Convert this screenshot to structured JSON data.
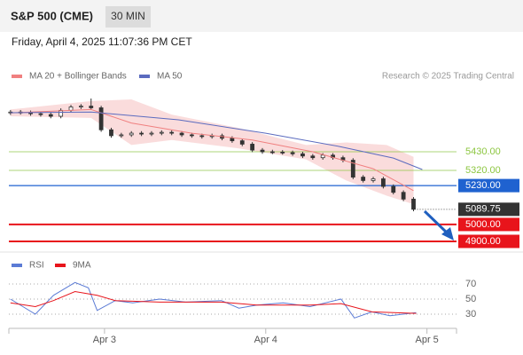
{
  "header": {
    "title": "S&P 500 (CME)",
    "interval": "30 MIN",
    "timestamp": "Friday, April 4, 2025 11:07:36 PM CET",
    "credit": "Research © 2025 Trading Central"
  },
  "chart_data": [
    {
      "type": "candlestick",
      "x": [
        -14,
        -12.5,
        -11,
        -9.5,
        -8,
        -6.5,
        -5,
        -3.5,
        -2,
        -0.5,
        1,
        2.5,
        4,
        5.5,
        7,
        8.5,
        10,
        11.5,
        13,
        14.5,
        16,
        17.5,
        19,
        20.5,
        22,
        23.5,
        25,
        26.5,
        28,
        29.5,
        31,
        32.5,
        34,
        35.5,
        37,
        38.5,
        40,
        41.5,
        43,
        44.5,
        46
      ],
      "open": [
        5660,
        5665,
        5662,
        5655,
        5650,
        5640,
        5675,
        5695,
        5700,
        5690,
        5560,
        5525,
        5530,
        5540,
        5535,
        5540,
        5545,
        5540,
        5530,
        5525,
        5520,
        5525,
        5510,
        5495,
        5475,
        5440,
        5430,
        5428,
        5425,
        5418,
        5405,
        5395,
        5410,
        5395,
        5380,
        5280,
        5260,
        5270,
        5225,
        5190,
        5150
      ],
      "high": [
        5677,
        5677,
        5674,
        5667,
        5662,
        5687,
        5707,
        5712,
        5745,
        5702,
        5572,
        5542,
        5552,
        5552,
        5552,
        5557,
        5557,
        5552,
        5542,
        5537,
        5537,
        5537,
        5522,
        5507,
        5487,
        5452,
        5442,
        5440,
        5437,
        5430,
        5417,
        5422,
        5422,
        5407,
        5392,
        5292,
        5282,
        5282,
        5237,
        5202,
        5162
      ],
      "low": [
        5648,
        5650,
        5643,
        5638,
        5628,
        5628,
        5663,
        5683,
        5678,
        5548,
        5513,
        5513,
        5518,
        5523,
        5523,
        5528,
        5528,
        5518,
        5513,
        5508,
        5508,
        5498,
        5483,
        5463,
        5428,
        5418,
        5416,
        5413,
        5406,
        5393,
        5383,
        5383,
        5383,
        5368,
        5268,
        5248,
        5248,
        5213,
        5178,
        5138,
        5078
      ],
      "close": [
        5665,
        5662,
        5655,
        5650,
        5640,
        5675,
        5695,
        5700,
        5690,
        5560,
        5525,
        5530,
        5540,
        5535,
        5540,
        5545,
        5540,
        5530,
        5525,
        5520,
        5525,
        5510,
        5495,
        5475,
        5440,
        5430,
        5428,
        5425,
        5418,
        5405,
        5395,
        5410,
        5395,
        5380,
        5280,
        5260,
        5270,
        5225,
        5190,
        5150,
        5089.75
      ],
      "up_color": "#ffffff",
      "down_color": "#333333",
      "bands": {
        "color": "#f9d3d3",
        "x": [
          -14,
          -2,
          4,
          10,
          20,
          30,
          36,
          42,
          46
        ],
        "upper": [
          5680,
          5730,
          5740,
          5650,
          5570,
          5470,
          5485,
          5470,
          5400
        ],
        "lower": [
          5640,
          5630,
          5470,
          5500,
          5450,
          5385,
          5260,
          5170,
          5120
        ]
      },
      "series": [
        {
          "name": "MA 20 + Bollinger Bands",
          "color": "#f08080",
          "x": [
            -14,
            -2,
            4,
            13,
            22,
            31,
            40,
            46
          ],
          "values": [
            5660,
            5680,
            5600,
            5540,
            5500,
            5430,
            5330,
            5200
          ]
        },
        {
          "name": "MA 50",
          "color": "#5b6bbf",
          "x": [
            -14,
            -2,
            11,
            24,
            35,
            43,
            47.3
          ],
          "values": [
            5661,
            5665,
            5619,
            5540,
            5461,
            5393,
            5325
          ]
        }
      ],
      "levels": [
        {
          "value": 5430,
          "label": "5430.00",
          "color": "#8cc63f",
          "style": "text"
        },
        {
          "value": 5320,
          "label": "5320.00",
          "color": "#8cc63f",
          "style": "text"
        },
        {
          "value": 5230,
          "label": "5230.00",
          "color": "#1f62d0",
          "style": "box"
        },
        {
          "value": 5089.75,
          "color": "#333333",
          "style": "current"
        },
        {
          "value": 5000,
          "label": "5000.00",
          "color": "#e8141b",
          "style": "box"
        },
        {
          "value": 4900,
          "label": "4900.00",
          "color": "#e8141b",
          "style": "box"
        }
      ],
      "xlim": [
        -14.24,
        52.4
      ],
      "ylim": [
        4850,
        5850
      ]
    },
    {
      "type": "line",
      "series": [
        {
          "name": "RSI",
          "color": "#5b7bd5",
          "x": [
            -14,
            -10.3,
            -7.6,
            -4.4,
            -2.4,
            -1.1,
            1.6,
            4.2,
            8.2,
            12.1,
            17.4,
            20,
            22.7,
            26.6,
            30.6,
            35.2,
            37.2,
            39.8,
            42.5,
            46.4
          ],
          "values": [
            50,
            30,
            55,
            72,
            65,
            35,
            48,
            45,
            50,
            46,
            48,
            38,
            42,
            45,
            40,
            50,
            25,
            33,
            28,
            32
          ]
        },
        {
          "name": "9MA",
          "color": "#e8141b",
          "x": [
            -14,
            -10.3,
            -7.6,
            -4.4,
            -1.1,
            1.6,
            8.2,
            17.4,
            22.7,
            30.6,
            35.2,
            39.8,
            46.4
          ],
          "values": [
            45,
            40,
            48,
            60,
            55,
            48,
            46,
            46,
            42,
            42,
            44,
            33,
            31
          ]
        }
      ],
      "xlim": [
        -14.24,
        52.4
      ],
      "ylim": [
        13,
        88
      ],
      "yticks": [
        30,
        50,
        70
      ],
      "xticks": [
        {
          "value": 0,
          "label": "Apr 3"
        },
        {
          "value": 24,
          "label": "Apr 4"
        },
        {
          "value": 48,
          "label": "Apr 5"
        }
      ],
      "grid": true
    }
  ]
}
